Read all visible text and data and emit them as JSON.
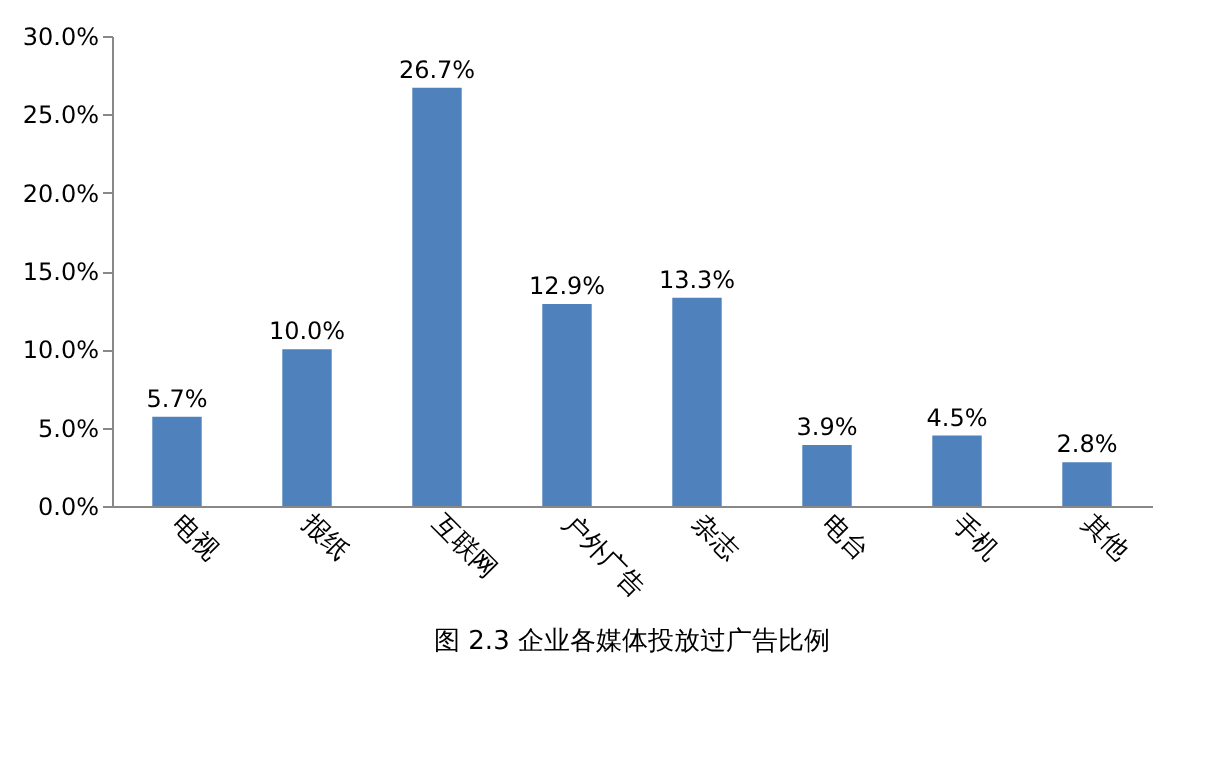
{
  "chart_data": {
    "type": "bar",
    "title": "图 2.3 企业各媒体投放过广告比例",
    "categories": [
      "电视",
      "报纸",
      "互联网",
      "户外广告",
      "杂志",
      "电台",
      "手机",
      "其他"
    ],
    "values": [
      5.7,
      10.0,
      26.7,
      12.9,
      13.3,
      3.9,
      4.5,
      2.8
    ],
    "value_labels": [
      "5.7%",
      "10.0%",
      "26.7%",
      "12.9%",
      "13.3%",
      "3.9%",
      "4.5%",
      "2.8%"
    ],
    "color": "#4f81bd",
    "ylim": [
      0,
      30
    ],
    "yticks": [
      {
        "value": 0,
        "label": "0.0%"
      },
      {
        "value": 5,
        "label": "5.0%"
      },
      {
        "value": 10,
        "label": "10.0%"
      },
      {
        "value": 15,
        "label": "15.0%"
      },
      {
        "value": 20,
        "label": "20.0%"
      },
      {
        "value": 25,
        "label": "25.0%"
      },
      {
        "value": 30,
        "label": "30.0%"
      }
    ],
    "grid": false
  }
}
